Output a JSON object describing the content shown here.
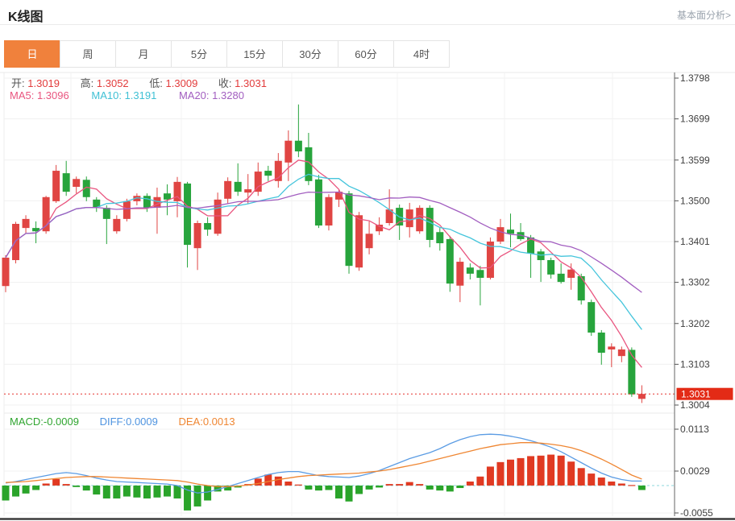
{
  "header": {
    "title": "K线图",
    "link": "基本面分析>"
  },
  "tabs": {
    "items": [
      "日",
      "周",
      "月",
      "5分",
      "15分",
      "30分",
      "60分",
      "4时"
    ],
    "active_index": 0
  },
  "legend": {
    "ohlc": {
      "open_label": "开:",
      "open": "1.3019",
      "high_label": "高:",
      "high": "1.3052",
      "low_label": "低:",
      "low": "1.3009",
      "close_label": "收:",
      "close": "1.3031"
    },
    "ma": {
      "ma5_label": "MA5:",
      "ma5": "1.3096",
      "ma10_label": "MA10:",
      "ma10": "1.3191",
      "ma20_label": "MA20:",
      "ma20": "1.3280"
    },
    "macd": {
      "macd_label": "MACD:",
      "macd": "-0.0009",
      "diff_label": "DIFF:",
      "diff": "0.0009",
      "dea_label": "DEA:",
      "dea": "0.0013"
    }
  },
  "colors": {
    "candle_up": "#e04543",
    "candle_down": "#27a43c",
    "bar_up": "#e03a22",
    "bar_down": "#2aa42a",
    "ma5": "#e9557f",
    "ma10": "#45c5dc",
    "ma20": "#a25ec0",
    "diff_line": "#5b9ce4",
    "dea_line": "#ef8632",
    "zero_line": "#8ed7de",
    "last_price_line": "#e5302c",
    "badge_bg": "#e32b16",
    "badge_text": "#ffffff",
    "grid": "#f0f0f0",
    "axis": "#666666",
    "tick_text": "#3f3f3f",
    "tab_accent": "#f0813c"
  },
  "chart_data": {
    "type": "candlestick+macd",
    "title": "K线图 (daily K-line with MA5/MA10/MA20 and MACD)",
    "price_axis": {
      "tick_labels": [
        "1.3798",
        "1.3699",
        "1.3599",
        "1.3500",
        "1.3401",
        "1.3302",
        "1.3202",
        "1.3103",
        "1.3004"
      ],
      "range": [
        1.3004,
        1.3798
      ],
      "last_price": 1.3031,
      "last_price_label": "1.3031"
    },
    "macd_axis": {
      "tick_labels": [
        "0.0113",
        "0.0029",
        "-0.0055"
      ],
      "range": [
        -0.0055,
        0.0113
      ]
    },
    "ma_periods": [
      5,
      10,
      20
    ],
    "candles_format": [
      "open",
      "high",
      "low",
      "close"
    ],
    "candles": [
      [
        1.3293,
        1.3368,
        1.3278,
        1.3362
      ],
      [
        1.3356,
        1.3449,
        1.3348,
        1.3444
      ],
      [
        1.3434,
        1.3465,
        1.342,
        1.3456
      ],
      [
        1.3434,
        1.345,
        1.3397,
        1.3426
      ],
      [
        1.3426,
        1.3512,
        1.342,
        1.3509
      ],
      [
        1.3499,
        1.3587,
        1.3495,
        1.3573
      ],
      [
        1.3567,
        1.3597,
        1.3512,
        1.3522
      ],
      [
        1.3534,
        1.3559,
        1.3518,
        1.3553
      ],
      [
        1.3551,
        1.3559,
        1.3499,
        1.3509
      ],
      [
        1.3503,
        1.3509,
        1.3473,
        1.3485
      ],
      [
        1.3483,
        1.3489,
        1.3395,
        1.3456
      ],
      [
        1.3426,
        1.3465,
        1.342,
        1.3456
      ],
      [
        1.3456,
        1.3505,
        1.345,
        1.3499
      ],
      [
        1.3499,
        1.3518,
        1.3489,
        1.3512
      ],
      [
        1.3512,
        1.3518,
        1.3473,
        1.3483
      ],
      [
        1.3483,
        1.3532,
        1.342,
        1.3509
      ],
      [
        1.3518,
        1.354,
        1.3465,
        1.3503
      ],
      [
        1.3499,
        1.3558,
        1.346,
        1.3546
      ],
      [
        1.3542,
        1.3546,
        1.3338,
        1.3393
      ],
      [
        1.3385,
        1.3452,
        1.3332,
        1.3446
      ],
      [
        1.3446,
        1.346,
        1.3415,
        1.343
      ],
      [
        1.342,
        1.352,
        1.3415,
        1.3503
      ],
      [
        1.3505,
        1.3557,
        1.3493,
        1.3548
      ],
      [
        1.3546,
        1.3591,
        1.3512,
        1.3522
      ],
      [
        1.352,
        1.3565,
        1.3493,
        1.3528
      ],
      [
        1.3522,
        1.3593,
        1.3512,
        1.3571
      ],
      [
        1.3573,
        1.3585,
        1.3548,
        1.3561
      ],
      [
        1.3548,
        1.3616,
        1.3532,
        1.3597
      ],
      [
        1.3593,
        1.3671,
        1.3548,
        1.3646
      ],
      [
        1.3646,
        1.3734,
        1.3606,
        1.362
      ],
      [
        1.363,
        1.3665,
        1.3538,
        1.3548
      ],
      [
        1.3552,
        1.3563,
        1.3434,
        1.344
      ],
      [
        1.344,
        1.3516,
        1.3428,
        1.3509
      ],
      [
        1.3503,
        1.3528,
        1.3485,
        1.3522
      ],
      [
        1.3518,
        1.3524,
        1.3323,
        1.3342
      ],
      [
        1.3338,
        1.3473,
        1.333,
        1.3465
      ],
      [
        1.3385,
        1.345,
        1.337,
        1.342
      ],
      [
        1.3426,
        1.346,
        1.3417,
        1.3442
      ],
      [
        1.3446,
        1.3528,
        1.344,
        1.3479
      ],
      [
        1.3483,
        1.3491,
        1.3405,
        1.344
      ],
      [
        1.3436,
        1.3495,
        1.3411,
        1.3479
      ],
      [
        1.3426,
        1.3489,
        1.342,
        1.3483
      ],
      [
        1.3483,
        1.3489,
        1.3387,
        1.3405
      ],
      [
        1.3424,
        1.3434,
        1.3379,
        1.3397
      ],
      [
        1.3407,
        1.3415,
        1.3279,
        1.3299
      ],
      [
        1.3294,
        1.3362,
        1.3254,
        1.3352
      ],
      [
        1.3338,
        1.3348,
        1.3309,
        1.3323
      ],
      [
        1.3332,
        1.3342,
        1.3246,
        1.3313
      ],
      [
        1.3313,
        1.3411,
        1.3309,
        1.3401
      ],
      [
        1.3401,
        1.3456,
        1.3395,
        1.3436
      ],
      [
        1.343,
        1.3469,
        1.3387,
        1.342
      ],
      [
        1.3424,
        1.3446,
        1.3403,
        1.3407
      ],
      [
        1.3411,
        1.3417,
        1.3313,
        1.3372
      ],
      [
        1.3377,
        1.3383,
        1.3303,
        1.3356
      ],
      [
        1.3356,
        1.3362,
        1.3311,
        1.3321
      ],
      [
        1.3323,
        1.3348,
        1.3299,
        1.3303
      ],
      [
        1.3313,
        1.3348,
        1.3284,
        1.3333
      ],
      [
        1.3317,
        1.3323,
        1.3248,
        1.3258
      ],
      [
        1.3254,
        1.326,
        1.3172,
        1.318
      ],
      [
        1.318,
        1.3186,
        1.3102,
        1.3131
      ],
      [
        1.3139,
        1.3154,
        1.3096,
        1.3146
      ],
      [
        1.3123,
        1.3146,
        1.3108,
        1.3139
      ],
      [
        1.3138,
        1.3144,
        1.3024,
        1.303
      ],
      [
        1.3019,
        1.3052,
        1.3009,
        1.3031
      ]
    ],
    "macd": {
      "hist": [
        -0.003,
        -0.0022,
        -0.0016,
        -0.0009,
        0.0004,
        0.0013,
        0.0003,
        -0.0003,
        -0.001,
        -0.0018,
        -0.0026,
        -0.0026,
        -0.0022,
        -0.0024,
        -0.0026,
        -0.0024,
        -0.0022,
        -0.0026,
        -0.005,
        -0.0042,
        -0.003,
        -0.0012,
        -0.001,
        -0.0004,
        0.0003,
        0.0014,
        0.0022,
        0.0018,
        0.0008,
        0.0002,
        -0.0008,
        -0.001,
        -0.0009,
        -0.0026,
        -0.0032,
        -0.0017,
        -0.0008,
        -0.0004,
        0.0003,
        0.0003,
        0.0007,
        0.0003,
        -0.0008,
        -0.001,
        -0.0012,
        -0.0005,
        0.0008,
        0.0018,
        0.0038,
        0.0047,
        0.0052,
        0.0055,
        0.0059,
        0.006,
        0.0062,
        0.006,
        0.0048,
        0.0035,
        0.0024,
        0.0016,
        0.0008,
        0.0004,
        0.0001,
        -0.0009
      ],
      "diff": [
        0.0005,
        0.0008,
        0.0012,
        0.0016,
        0.002,
        0.0024,
        0.0026,
        0.0024,
        0.002,
        0.0015,
        0.0011,
        0.0008,
        0.0007,
        0.0006,
        0.0005,
        0.0004,
        0.0003,
        0.0,
        -0.0009,
        -0.0015,
        -0.0013,
        -0.0008,
        -0.0002,
        0.0004,
        0.001,
        0.0016,
        0.0022,
        0.0026,
        0.0028,
        0.0028,
        0.0024,
        0.002,
        0.0018,
        0.0017,
        0.0016,
        0.0019,
        0.0024,
        0.003,
        0.0038,
        0.0046,
        0.0054,
        0.006,
        0.0066,
        0.0074,
        0.0084,
        0.0092,
        0.0098,
        0.0102,
        0.0103,
        0.0102,
        0.0099,
        0.0095,
        0.009,
        0.0084,
        0.0077,
        0.0068,
        0.0057,
        0.0046,
        0.0035,
        0.0025,
        0.0017,
        0.0012,
        0.0009,
        0.0009
      ],
      "dea": [
        0.0006,
        0.0007,
        0.0008,
        0.001,
        0.0012,
        0.0014,
        0.0016,
        0.0017,
        0.0018,
        0.0018,
        0.0017,
        0.0016,
        0.0015,
        0.0014,
        0.0013,
        0.0012,
        0.0011,
        0.001,
        0.0007,
        0.0003,
        0.0,
        -0.0002,
        -0.0002,
        -0.0001,
        0.0001,
        0.0004,
        0.0008,
        0.0012,
        0.0015,
        0.0018,
        0.002,
        0.0021,
        0.0022,
        0.0023,
        0.0024,
        0.0025,
        0.0027,
        0.0029,
        0.0032,
        0.0036,
        0.004,
        0.0044,
        0.0049,
        0.0054,
        0.0059,
        0.0064,
        0.0069,
        0.0074,
        0.0078,
        0.0082,
        0.0084,
        0.0086,
        0.0086,
        0.0085,
        0.0083,
        0.008,
        0.0076,
        0.007,
        0.0062,
        0.0053,
        0.0043,
        0.0032,
        0.0021,
        0.0013
      ]
    }
  }
}
